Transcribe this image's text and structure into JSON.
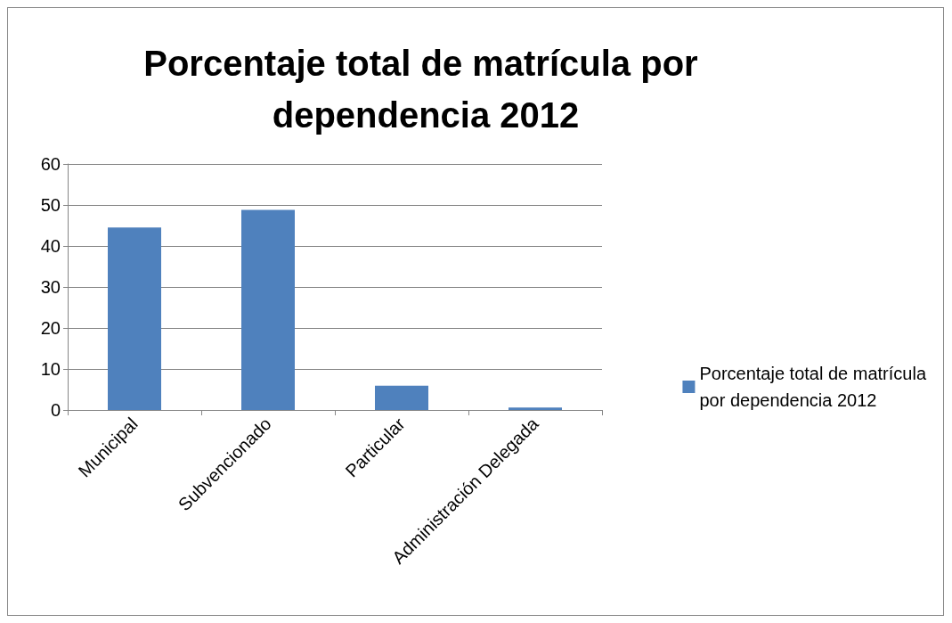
{
  "chart_data": {
    "type": "bar",
    "title": "Porcentaje total de matrícula por dependencia 2012",
    "categories": [
      "Municipal",
      "Subvencionado",
      "Particular",
      "Administración Delegada"
    ],
    "series": [
      {
        "name": "Porcentaje total de matrícula por dependencia 2012",
        "color": "#4f81bd",
        "values": [
          44.5,
          48.8,
          5.9,
          0.6
        ]
      }
    ],
    "ylim": [
      0,
      60
    ],
    "yticks": [
      0,
      10,
      20,
      30,
      40,
      50,
      60
    ],
    "grid": "y",
    "legend": "right"
  }
}
